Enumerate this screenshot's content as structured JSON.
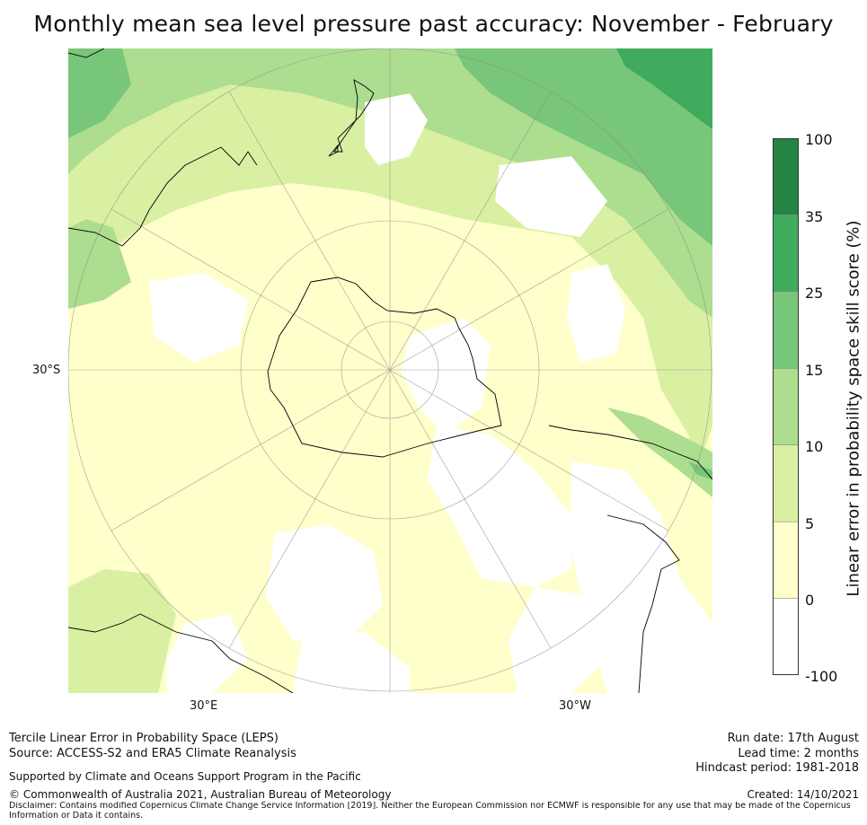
{
  "title": "Monthly mean sea level pressure past accuracy: November - February",
  "map": {
    "projection": "south-polar-stereographic",
    "lat_labels": [
      "30°S"
    ],
    "lon_labels": [
      "30°E",
      "30°W"
    ]
  },
  "colorbar": {
    "label": "Linear error in probability space skill score (%)",
    "ticks": [
      "100",
      "35",
      "25",
      "15",
      "10",
      "5",
      "0",
      "-100"
    ],
    "bins": [
      {
        "from": -100,
        "to": 0,
        "color": "#ffffff"
      },
      {
        "from": 0,
        "to": 5,
        "color": "#ffffcc"
      },
      {
        "from": 5,
        "to": 10,
        "color": "#d9f0a3"
      },
      {
        "from": 10,
        "to": 15,
        "color": "#addd8e"
      },
      {
        "from": 15,
        "to": 25,
        "color": "#78c679"
      },
      {
        "from": 25,
        "to": 35,
        "color": "#41ab5d"
      },
      {
        "from": 35,
        "to": 100,
        "color": "#238443"
      }
    ]
  },
  "footer": {
    "line1": "Tercile Linear Error in Probability Space (LEPS)",
    "line2": "Source: ACCESS-S2 and ERA5 Climate Reanalysis",
    "support": "Supported by Climate and Oceans Support Program in the Pacific",
    "copyright": "© Commonwealth of Australia 2021, Australian Bureau of Meteorology",
    "disclaimer_1": "Disclaimer: Contains modified Copernicus Climate Change Service Information [2019]. Neither the European Commission nor ECMWF is responsible for any use that may be made of the Copernicus",
    "disclaimer_2": "Information or Data it contains.",
    "run_date": "Run date: 17th August",
    "lead_time": "Lead time: 2 months",
    "hindcast": "Hindcast period: 1981-2018",
    "created": "Created: 14/10/2021"
  }
}
